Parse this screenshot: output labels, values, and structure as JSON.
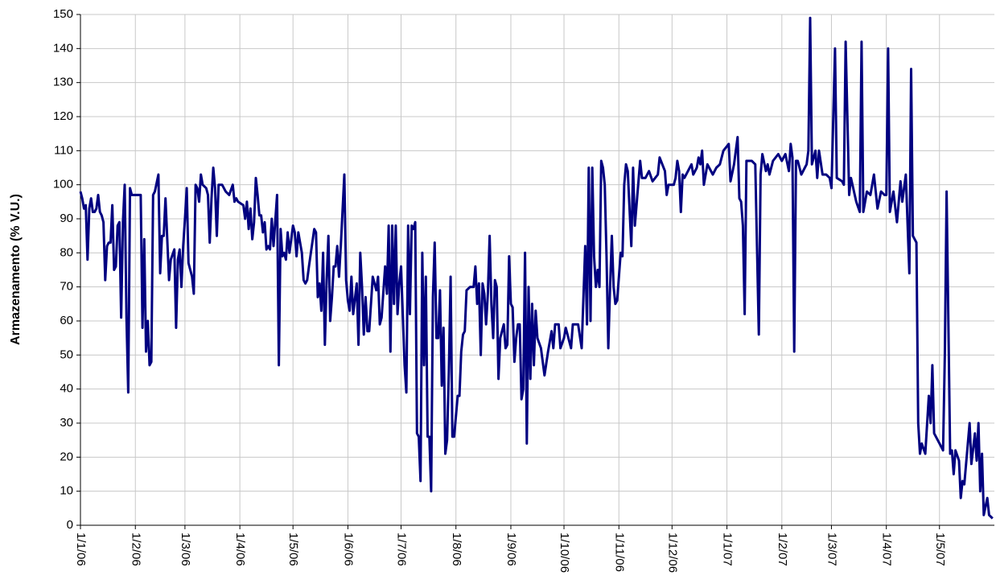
{
  "chart_data": {
    "type": "line",
    "y_label": "Armazenamento (% V.U.)",
    "x": [
      "1/1/06",
      "2/1/06",
      "3/1/06",
      "4/1/06",
      "5/1/06",
      "6/1/06",
      "7/1/06",
      "8/1/06",
      "9/1/06",
      "10/1/06",
      "11/1/06",
      "12/1/06",
      "13/1/06",
      "14/1/06",
      "15/1/06",
      "16/1/06",
      "17/1/06",
      "18/1/06",
      "19/1/06",
      "20/1/06",
      "21/1/06",
      "22/1/06",
      "23/1/06",
      "24/1/06",
      "25/1/06",
      "26/1/06",
      "27/1/06",
      "28/1/06",
      "29/1/06",
      "30/1/06",
      "31/1/06",
      "1/2/06",
      "3/2/06",
      "4/2/06",
      "5/2/06",
      "6/2/06",
      "7/2/06",
      "8/2/06",
      "9/2/06",
      "10/2/06",
      "11/2/06",
      "12/2/06",
      "14/2/06",
      "15/2/06",
      "16/2/06",
      "17/2/06",
      "18/2/06",
      "20/2/06",
      "21/2/06",
      "23/2/06",
      "24/2/06",
      "25/2/06",
      "26/2/06",
      "27/2/06",
      "28/2/06",
      "1/3/06",
      "2/3/06",
      "3/3/06",
      "4/3/06",
      "5/3/06",
      "6/3/06",
      "7/3/06",
      "8/3/06",
      "9/3/06",
      "10/3/06",
      "11/3/06",
      "13/3/06",
      "14/3/06",
      "15/3/06",
      "16/3/06",
      "17/3/06",
      "18/3/06",
      "19/3/06",
      "20/3/06",
      "22/3/06",
      "24/3/06",
      "26/3/06",
      "28/3/06",
      "29/3/06",
      "30/3/06",
      "31/3/06",
      "3/4/06",
      "4/4/06",
      "5/4/06",
      "6/4/06",
      "7/4/06",
      "8/4/06",
      "9/4/06",
      "10/4/06",
      "11/4/06",
      "12/4/06",
      "13/4/06",
      "14/4/06",
      "15/4/06",
      "16/4/06",
      "17/4/06",
      "18/4/06",
      "19/4/06",
      "20/4/06",
      "22/4/06",
      "23/4/06",
      "24/4/06",
      "25/4/06",
      "26/4/06",
      "27/4/06",
      "28/4/06",
      "29/4/06",
      "1/5/06",
      "2/5/06",
      "3/5/06",
      "4/5/06",
      "6/5/06",
      "7/5/06",
      "8/5/06",
      "9/5/06",
      "10/5/06",
      "13/5/06",
      "14/5/06",
      "15/5/06",
      "16/5/06",
      "17/5/06",
      "18/5/06",
      "19/5/06",
      "20/5/06",
      "21/5/06",
      "22/5/06",
      "23/5/06",
      "24/5/06",
      "25/5/06",
      "26/5/06",
      "27/5/06",
      "28/5/06",
      "30/5/06",
      "31/5/06",
      "1/6/06",
      "2/6/06",
      "3/6/06",
      "4/6/06",
      "6/6/06",
      "7/6/06",
      "8/6/06",
      "9/6/06",
      "10/6/06",
      "11/6/06",
      "12/6/06",
      "13/6/06",
      "15/6/06",
      "16/6/06",
      "17/6/06",
      "18/6/06",
      "19/6/06",
      "20/6/06",
      "22/6/06",
      "23/6/06",
      "24/6/06",
      "25/6/06",
      "26/6/06",
      "27/6/06",
      "28/6/06",
      "29/6/06",
      "30/6/06",
      "1/7/06",
      "3/7/06",
      "4/7/06",
      "5/7/06",
      "6/7/06",
      "7/7/06",
      "8/7/06",
      "9/7/06",
      "10/7/06",
      "11/7/06",
      "12/7/06",
      "13/7/06",
      "14/7/06",
      "15/7/06",
      "16/7/06",
      "17/7/06",
      "18/7/06",
      "19/7/06",
      "20/7/06",
      "21/7/06",
      "22/7/06",
      "23/7/06",
      "24/7/06",
      "25/7/06",
      "26/7/06",
      "27/7/06",
      "28/7/06",
      "29/7/06",
      "30/7/06",
      "31/7/06",
      "2/8/06",
      "3/8/06",
      "4/8/06",
      "5/8/06",
      "6/8/06",
      "7/8/06",
      "9/8/06",
      "11/8/06",
      "12/8/06",
      "13/8/06",
      "14/8/06",
      "15/8/06",
      "16/8/06",
      "17/8/06",
      "18/8/06",
      "19/8/06",
      "20/8/06",
      "21/8/06",
      "22/8/06",
      "23/8/06",
      "24/8/06",
      "25/8/06",
      "26/8/06",
      "28/8/06",
      "29/8/06",
      "30/8/06",
      "31/8/06",
      "1/9/06",
      "2/9/06",
      "3/9/06",
      "4/9/06",
      "5/9/06",
      "6/9/06",
      "7/9/06",
      "8/9/06",
      "9/9/06",
      "10/9/06",
      "11/9/06",
      "12/9/06",
      "13/9/06",
      "14/9/06",
      "15/9/06",
      "16/9/06",
      "18/9/06",
      "20/9/06",
      "22/9/06",
      "24/9/06",
      "25/9/06",
      "26/9/06",
      "28/9/06",
      "29/9/06",
      "1/10/06",
      "2/10/06",
      "5/10/06",
      "6/10/06",
      "9/10/06",
      "11/10/06",
      "13/10/06",
      "14/10/06",
      "15/10/06",
      "16/10/06",
      "17/10/06",
      "18/10/06",
      "19/10/06",
      "20/10/06",
      "21/10/06",
      "22/10/06",
      "23/10/06",
      "24/10/06",
      "25/10/06",
      "26/10/06",
      "27/10/06",
      "28/10/06",
      "29/10/06",
      "30/10/06",
      "31/10/06",
      "2/11/06",
      "3/11/06",
      "4/11/06",
      "5/11/06",
      "6/11/06",
      "8/11/06",
      "9/11/06",
      "10/11/06",
      "13/11/06",
      "14/11/06",
      "16/11/06",
      "18/11/06",
      "20/11/06",
      "23/11/06",
      "24/11/06",
      "27/11/06",
      "28/11/06",
      "29/11/06",
      "30/11/06",
      "2/12/06",
      "3/12/06",
      "4/12/06",
      "5/12/06",
      "6/12/06",
      "7/12/06",
      "8/12/06",
      "12/12/06",
      "13/12/06",
      "15/12/06",
      "16/12/06",
      "17/12/06",
      "18/12/06",
      "19/12/06",
      "21/12/06",
      "24/12/06",
      "26/12/06",
      "28/12/06",
      "30/12/06",
      "2/1/07",
      "3/1/07",
      "5/1/07",
      "7/1/07",
      "8/1/07",
      "9/1/07",
      "10/1/07",
      "11/1/07",
      "12/1/07",
      "15/1/07",
      "17/1/07",
      "19/1/07",
      "20/1/07",
      "21/1/07",
      "23/1/07",
      "24/1/07",
      "25/1/07",
      "27/1/07",
      "30/1/07",
      "1/2/07",
      "3/2/07",
      "5/2/07",
      "6/2/07",
      "7/2/07",
      "8/2/07",
      "9/2/07",
      "10/2/07",
      "12/2/07",
      "14/2/07",
      "15/2/07",
      "16/2/07",
      "17/2/07",
      "18/2/07",
      "20/2/07",
      "21/2/07",
      "22/2/07",
      "24/2/07",
      "26/2/07",
      "28/2/07",
      "1/3/07",
      "3/3/07",
      "4/3/07",
      "7/3/07",
      "8/3/07",
      "9/3/07",
      "11/3/07",
      "12/3/07",
      "15/3/07",
      "17/3/07",
      "18/3/07",
      "19/3/07",
      "21/3/07",
      "23/3/07",
      "25/3/07",
      "27/3/07",
      "29/3/07",
      "31/3/07",
      "1/4/07",
      "2/4/07",
      "3/4/07",
      "5/4/07",
      "7/4/07",
      "9/4/07",
      "10/4/07",
      "12/4/07",
      "14/4/07",
      "15/4/07",
      "16/4/07",
      "18/4/07",
      "19/4/07",
      "20/4/07",
      "21/4/07",
      "23/4/07",
      "25/4/07",
      "26/4/07",
      "27/4/07",
      "28/4/07",
      "2/5/07",
      "3/5/07",
      "4/5/07",
      "5/5/07",
      "7/5/07",
      "8/5/07",
      "9/5/07",
      "10/5/07",
      "12/5/07",
      "13/5/07",
      "14/5/07",
      "15/5/07",
      "18/5/07",
      "19/5/07",
      "21/5/07",
      "22/5/07",
      "23/5/07",
      "24/5/07",
      "25/5/07",
      "26/5/07",
      "28/5/07",
      "29/5/07",
      "31/5/07"
    ],
    "values": [
      98,
      96,
      93,
      94,
      78,
      93,
      96,
      92,
      92,
      93,
      97,
      92,
      91,
      89,
      72,
      82,
      83,
      83,
      94,
      75,
      76,
      88,
      89,
      61,
      89,
      100,
      61,
      39,
      99,
      97,
      97,
      97,
      97,
      97,
      58,
      84,
      51,
      60,
      47,
      48,
      97,
      98,
      103,
      74,
      85,
      85,
      96,
      72,
      78,
      81,
      58,
      78,
      81,
      70,
      82,
      90,
      99,
      77,
      75,
      73,
      68,
      100,
      99,
      95,
      103,
      100,
      99,
      97,
      83,
      96,
      105,
      99,
      85,
      100,
      100,
      98,
      97,
      100,
      95,
      96,
      95,
      94,
      90,
      95,
      87,
      93,
      84,
      89,
      102,
      97,
      91,
      91,
      86,
      89,
      81,
      82,
      81,
      90,
      82,
      97,
      47,
      87,
      79,
      80,
      78,
      86,
      80,
      88,
      86,
      79,
      86,
      80,
      72,
      71,
      72,
      76,
      87,
      86,
      67,
      71,
      63,
      80,
      53,
      72,
      85,
      60,
      67,
      76,
      76,
      82,
      73,
      82,
      103,
      72,
      66,
      63,
      73,
      62,
      71,
      53,
      80,
      70,
      56,
      67,
      57,
      57,
      73,
      71,
      69,
      73,
      59,
      61,
      76,
      68,
      88,
      51,
      88,
      65,
      88,
      62,
      71,
      76,
      47,
      39,
      88,
      62,
      88,
      87,
      89,
      27,
      26,
      13,
      80,
      47,
      73,
      26,
      26,
      10,
      67,
      83,
      55,
      55,
      69,
      41,
      58,
      21,
      25,
      45,
      73,
      26,
      26,
      38,
      38,
      51,
      56,
      57,
      69,
      70,
      70,
      76,
      65,
      71,
      50,
      71,
      68,
      59,
      68,
      85,
      65,
      55,
      72,
      70,
      43,
      55,
      59,
      52,
      53,
      79,
      65,
      64,
      48,
      55,
      59,
      59,
      37,
      40,
      80,
      24,
      70,
      43,
      65,
      47,
      63,
      55,
      52,
      44,
      51,
      57,
      52,
      59,
      59,
      52,
      55,
      58,
      52,
      59,
      59,
      52,
      82,
      59,
      105,
      60,
      105,
      79,
      70,
      75,
      70,
      107,
      105,
      100,
      79,
      52,
      70,
      85,
      70,
      65,
      66,
      80,
      79,
      100,
      106,
      104,
      82,
      105,
      88,
      107,
      102,
      102,
      104,
      101,
      103,
      108,
      104,
      97,
      100,
      100,
      100,
      102,
      107,
      104,
      92,
      103,
      102,
      106,
      103,
      105,
      108,
      106,
      110,
      100,
      106,
      103,
      105,
      106,
      110,
      112,
      101,
      106,
      114,
      96,
      95,
      88,
      62,
      107,
      107,
      106,
      56,
      103,
      109,
      104,
      106,
      103,
      107,
      109,
      107,
      109,
      104,
      112,
      108,
      51,
      107,
      107,
      103,
      105,
      106,
      110,
      149,
      106,
      110,
      102,
      110,
      103,
      103,
      102,
      99,
      140,
      102,
      101,
      100,
      142,
      97,
      102,
      95,
      92,
      142,
      92,
      98,
      97,
      103,
      93,
      98,
      97,
      97,
      140,
      92,
      98,
      89,
      101,
      95,
      103,
      74,
      134,
      85,
      83,
      30,
      21,
      24,
      21,
      38,
      30,
      47,
      27,
      23,
      22,
      50,
      98,
      21,
      22,
      15,
      22,
      19,
      8,
      13,
      12,
      30,
      18,
      27,
      19,
      30,
      10,
      21,
      3,
      8,
      3,
      2
    ],
    "color": "#000080",
    "xlim": [
      "1/1/06",
      "1/6/07"
    ],
    "xticks": [
      "1/1/06",
      "1/2/06",
      "1/3/06",
      "1/4/06",
      "1/5/06",
      "1/6/06",
      "1/7/06",
      "1/8/06",
      "1/9/06",
      "1/10/06",
      "1/11/06",
      "1/12/06",
      "1/1/07",
      "1/2/07",
      "1/3/07",
      "1/4/07",
      "1/5/07"
    ],
    "ylim": [
      0,
      150
    ],
    "yticks": [
      0,
      10,
      20,
      30,
      40,
      50,
      60,
      70,
      80,
      90,
      100,
      110,
      120,
      130,
      140,
      150
    ],
    "grid": true
  }
}
